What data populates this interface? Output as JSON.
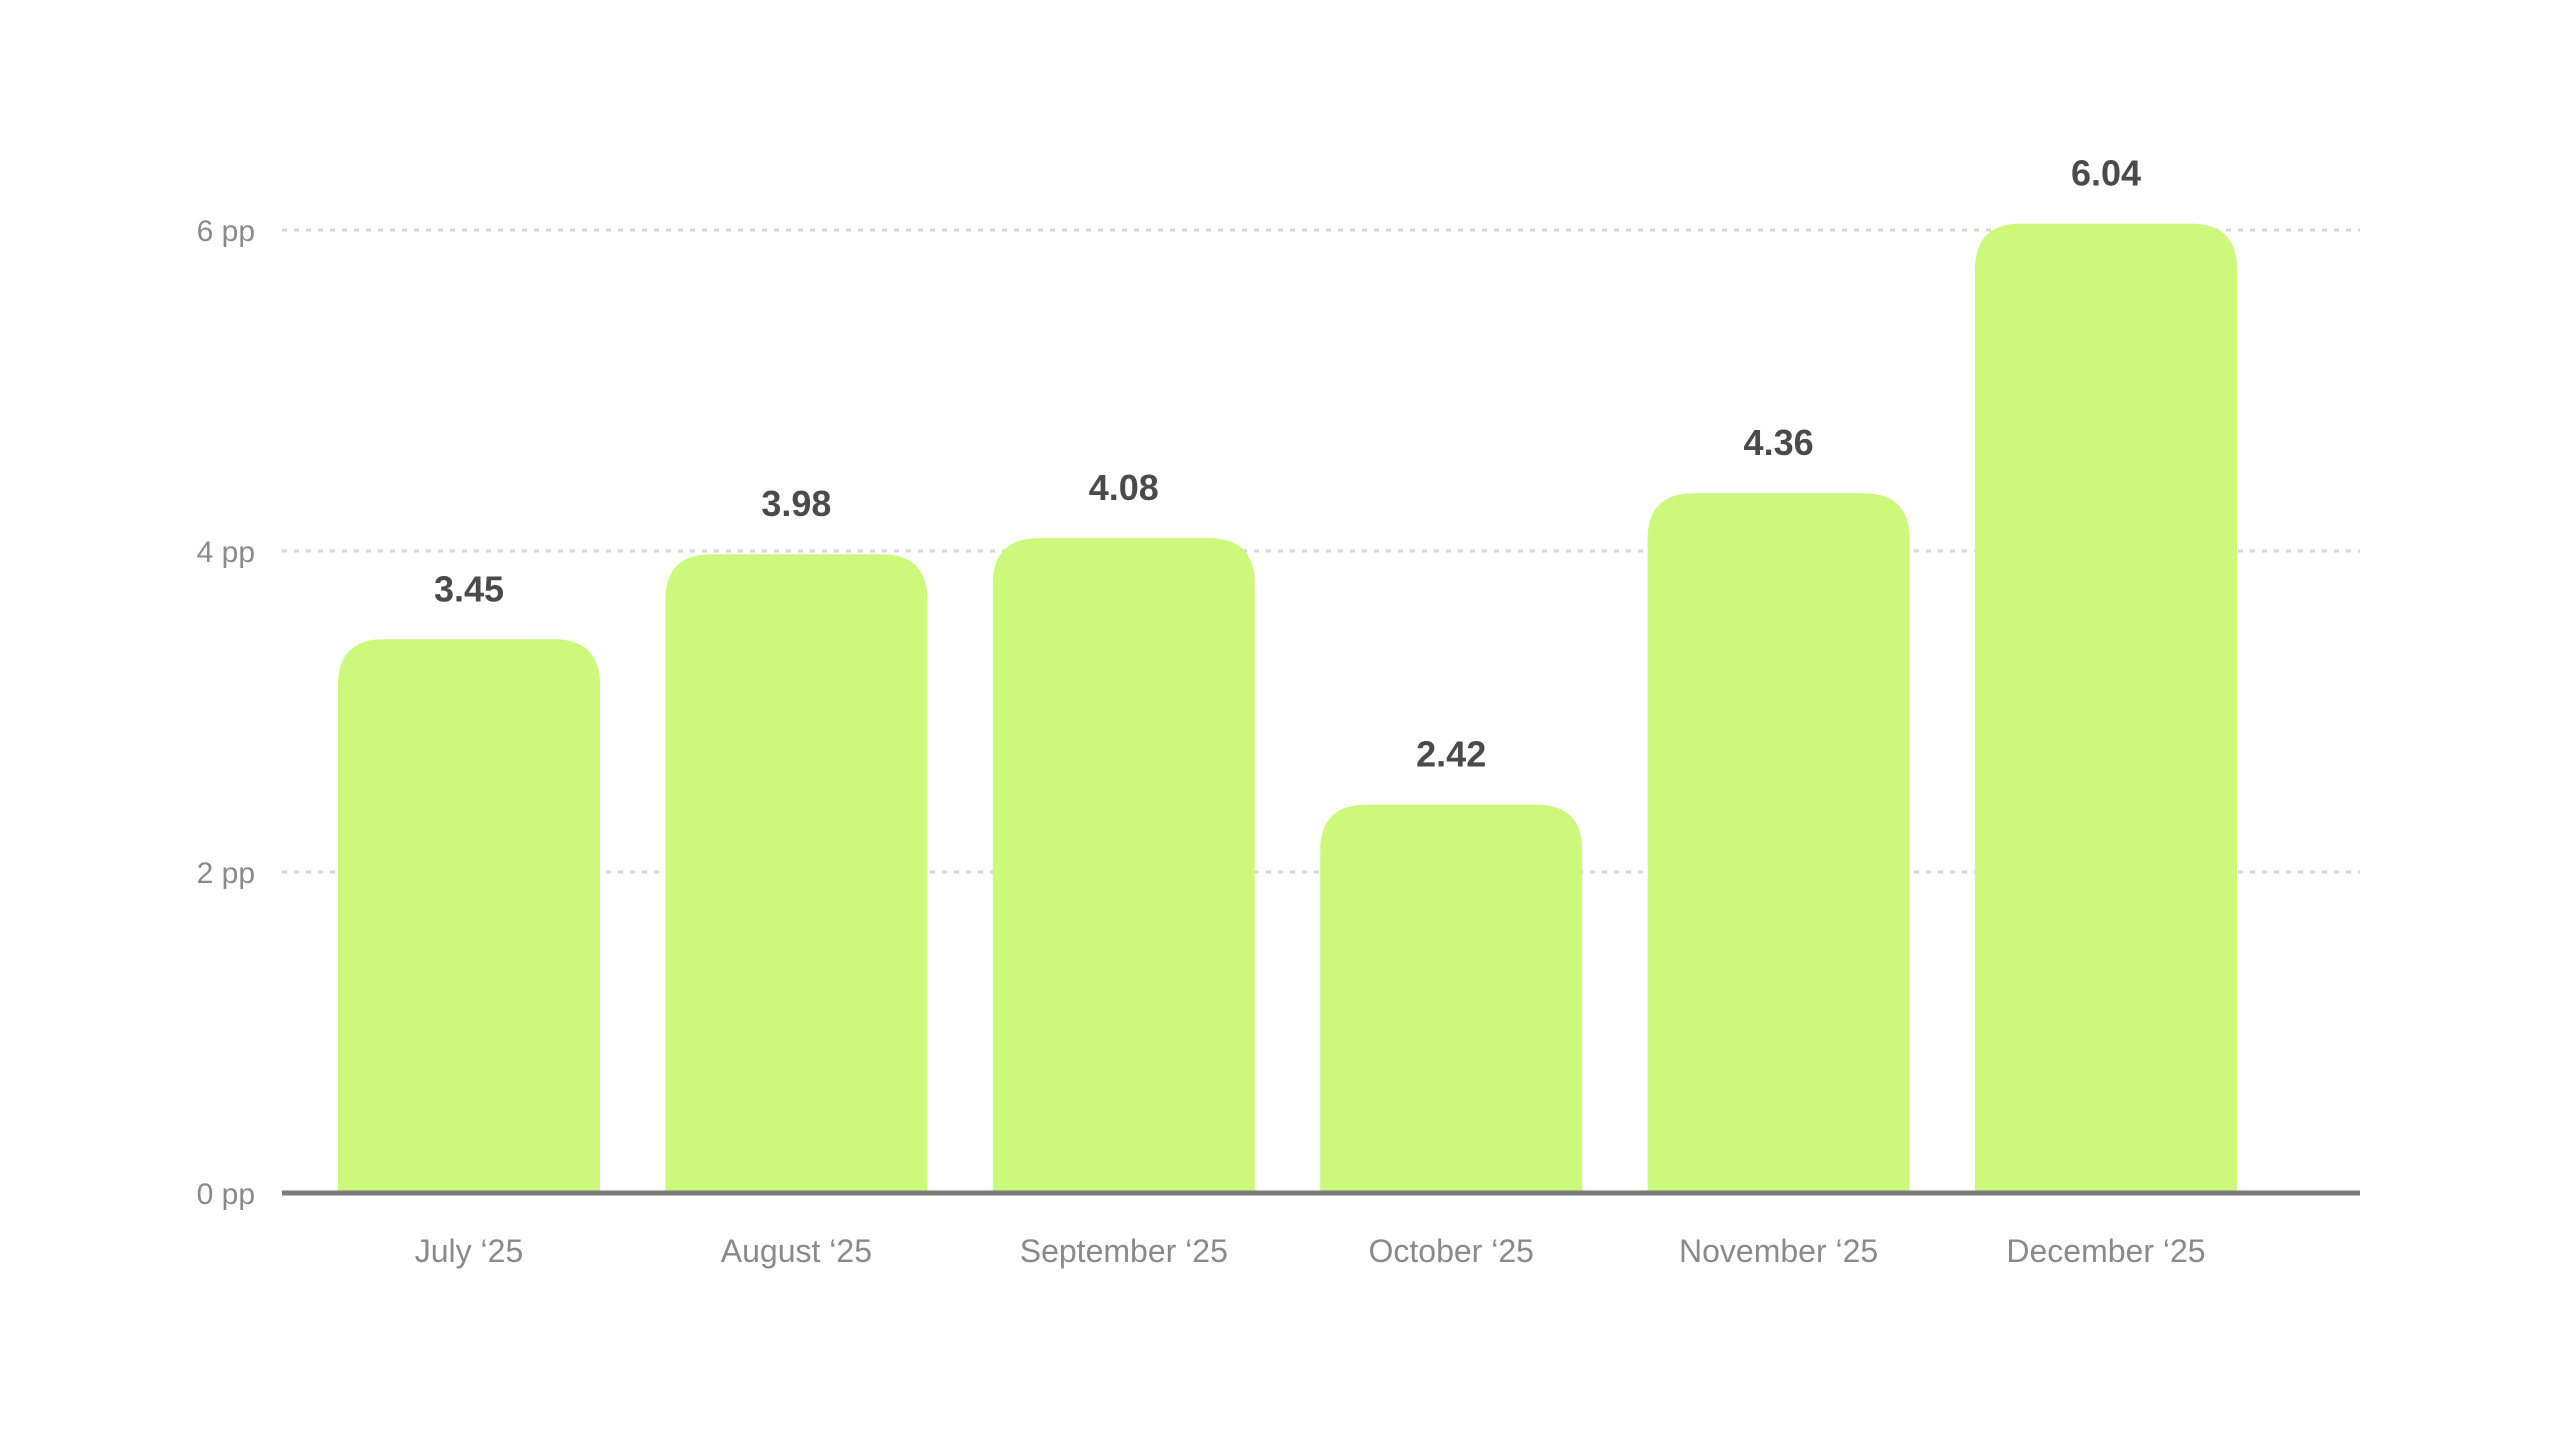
{
  "chart_data": {
    "type": "bar",
    "title": "",
    "xlabel": "",
    "ylabel": "",
    "categories": [
      "July ‘25",
      "August ‘25",
      "September ‘25",
      "October ‘25",
      "November ‘25",
      "December ‘25"
    ],
    "values": [
      3.45,
      3.98,
      4.08,
      2.42,
      4.36,
      6.04
    ],
    "value_labels": [
      "3.45",
      "3.98",
      "4.08",
      "2.42",
      "4.36",
      "6.04"
    ],
    "ylim": [
      0,
      6
    ],
    "yticks": [
      0,
      2,
      4,
      6
    ],
    "ytick_labels": [
      "0 pp",
      "2 pp",
      "4 pp",
      "6 pp"
    ],
    "grid": true,
    "legend": "none",
    "colors": {
      "bar": "#ccf87c",
      "grid": "#d6d6d6",
      "axis": "#7a7a7a",
      "tick_text": "#8a8a8a",
      "value_text": "#4a4a4a"
    }
  }
}
